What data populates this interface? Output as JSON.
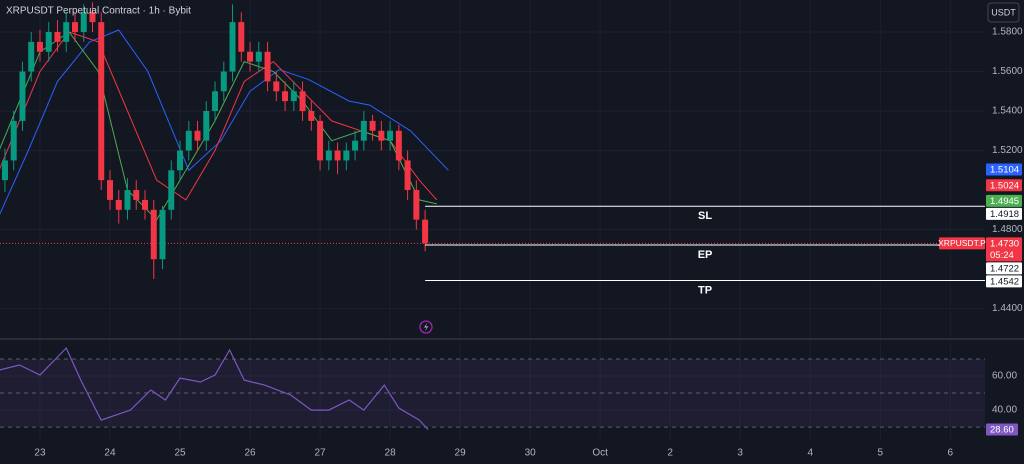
{
  "toolbar": {
    "currency": "USDT"
  },
  "chart_data": [
    {
      "type": "candlestick",
      "title": "XRPUSDT Perpetual Contract · 1h · Bybit",
      "x": [
        -12,
        -9,
        -6,
        -3,
        0,
        3,
        6,
        9,
        12,
        15,
        18,
        21,
        24,
        27,
        30,
        33,
        36,
        39,
        42,
        45,
        48,
        51,
        54,
        57,
        60,
        63,
        66,
        69,
        72,
        75,
        78,
        81,
        84,
        87,
        90,
        93,
        96,
        99,
        102,
        105,
        108,
        111,
        114,
        117,
        120,
        123,
        126,
        129,
        132
      ],
      "open": [
        1.505,
        1.515,
        1.535,
        1.56,
        1.575,
        1.57,
        1.58,
        1.575,
        1.585,
        1.58,
        1.59,
        1.585,
        1.505,
        1.495,
        1.49,
        1.5,
        1.495,
        1.49,
        1.465,
        1.49,
        1.51,
        1.52,
        1.53,
        1.525,
        1.54,
        1.55,
        1.56,
        1.585,
        1.57,
        1.565,
        1.57,
        1.555,
        1.55,
        1.545,
        1.55,
        1.54,
        1.535,
        1.515,
        1.52,
        1.515,
        1.52,
        1.525,
        1.535,
        1.53,
        1.525,
        1.53,
        1.515,
        1.5,
        1.485
      ],
      "high": [
        1.521,
        1.54,
        1.565,
        1.58,
        1.581,
        1.585,
        1.586,
        1.59,
        1.59,
        1.594,
        1.595,
        1.59,
        1.51,
        1.5,
        1.506,
        1.505,
        1.5,
        1.495,
        1.492,
        1.515,
        1.525,
        1.535,
        1.535,
        1.545,
        1.555,
        1.565,
        1.594,
        1.59,
        1.575,
        1.575,
        1.575,
        1.56,
        1.555,
        1.555,
        1.555,
        1.545,
        1.538,
        1.525,
        1.524,
        1.524,
        1.53,
        1.54,
        1.538,
        1.535,
        1.535,
        1.533,
        1.52,
        1.505,
        1.49
      ],
      "low": [
        1.499,
        1.51,
        1.53,
        1.555,
        1.565,
        1.565,
        1.57,
        1.57,
        1.575,
        1.575,
        1.58,
        1.5,
        1.49,
        1.483,
        1.485,
        1.49,
        1.485,
        1.455,
        1.46,
        1.485,
        1.505,
        1.515,
        1.52,
        1.52,
        1.535,
        1.545,
        1.555,
        1.565,
        1.56,
        1.56,
        1.55,
        1.545,
        1.54,
        1.54,
        1.535,
        1.53,
        1.51,
        1.51,
        1.508,
        1.51,
        1.515,
        1.52,
        1.525,
        1.52,
        1.52,
        1.51,
        1.495,
        1.48,
        1.469
      ],
      "close": [
        1.515,
        1.535,
        1.56,
        1.575,
        1.57,
        1.58,
        1.575,
        1.585,
        1.58,
        1.59,
        1.585,
        1.505,
        1.495,
        1.49,
        1.5,
        1.495,
        1.49,
        1.465,
        1.49,
        1.51,
        1.52,
        1.53,
        1.525,
        1.54,
        1.55,
        1.56,
        1.585,
        1.57,
        1.565,
        1.57,
        1.555,
        1.55,
        1.545,
        1.55,
        1.54,
        1.535,
        1.515,
        1.52,
        1.515,
        1.52,
        1.525,
        1.535,
        1.53,
        1.525,
        1.53,
        1.515,
        1.5,
        1.485,
        1.473
      ],
      "up_color": "#089981",
      "down_color": "#f23645",
      "series": [
        {
          "color": "#2962ff",
          "x": [
            -14,
            -4,
            6,
            17,
            27,
            37,
            51,
            62,
            72,
            82,
            92,
            106,
            113,
            127,
            140
          ],
          "values": [
            1.487,
            1.52,
            1.555,
            1.575,
            1.581,
            1.56,
            1.51,
            1.525,
            1.55,
            1.561,
            1.556,
            1.545,
            1.543,
            1.53,
            1.51
          ]
        },
        {
          "color": "#f23645",
          "x": [
            -14,
            0,
            10,
            20,
            30,
            40,
            50,
            60,
            70,
            80,
            90,
            100,
            110,
            120,
            130,
            136
          ],
          "values": [
            1.51,
            1.56,
            1.58,
            1.575,
            1.54,
            1.505,
            1.495,
            1.52,
            1.555,
            1.565,
            1.55,
            1.535,
            1.53,
            1.525,
            1.505,
            1.495
          ]
        },
        {
          "color": "#4caf50",
          "x": [
            -14,
            0,
            10,
            20,
            30,
            40,
            50,
            60,
            70,
            80,
            90,
            100,
            110,
            120,
            130,
            136
          ],
          "values": [
            1.52,
            1.57,
            1.58,
            1.56,
            1.5,
            1.485,
            1.51,
            1.535,
            1.565,
            1.56,
            1.545,
            1.525,
            1.53,
            1.525,
            1.495,
            1.493
          ]
        }
      ],
      "xlim": [
        -13.7,
        323.9
      ],
      "ylim": [
        1.4251,
        1.5962
      ],
      "yticks": [
        {
          "value": 1.58,
          "label": "1.5800"
        },
        {
          "value": 1.56,
          "label": "1.5600"
        },
        {
          "value": 1.54,
          "label": "1.5400"
        },
        {
          "value": 1.52,
          "label": "1.5200"
        },
        {
          "value": 1.48,
          "label": "1.4800"
        },
        {
          "value": 1.44,
          "label": "1.4400"
        }
      ],
      "xticks": [
        {
          "value": 0,
          "label": "23"
        },
        {
          "value": 24,
          "label": "24"
        },
        {
          "value": 48,
          "label": "25"
        },
        {
          "value": 72,
          "label": "26"
        },
        {
          "value": 96,
          "label": "27"
        },
        {
          "value": 120,
          "label": "28"
        },
        {
          "value": 144,
          "label": "29"
        },
        {
          "value": 168,
          "label": "30"
        },
        {
          "value": 192,
          "label": "Oct"
        },
        {
          "value": 216,
          "label": "2"
        },
        {
          "value": 240,
          "label": "3"
        },
        {
          "value": 264,
          "label": "4"
        },
        {
          "value": 288,
          "label": "5"
        },
        {
          "value": 312,
          "label": "6"
        }
      ],
      "grid": true,
      "price_tags": [
        {
          "value": 1.5104,
          "label": "1.5104",
          "color": "#2962ff"
        },
        {
          "value": 1.5024,
          "label": "1.5024",
          "color": "#f23645"
        },
        {
          "value": 1.4945,
          "label": "1.4945",
          "color": "#4caf50"
        }
      ],
      "last": {
        "name": "XRPUSDT.P",
        "value": 1.473,
        "label": "1.4730",
        "countdown": "05:24",
        "color": "#f23645"
      },
      "levels": [
        {
          "name": "SL",
          "value": 1.4918,
          "label": "1.4918",
          "x": 132
        },
        {
          "name": "EP",
          "value": 1.4722,
          "label": "1.4722",
          "x": 132
        },
        {
          "name": "TP",
          "value": 1.4542,
          "label": "1.4542",
          "x": 132
        }
      ]
    },
    {
      "type": "line",
      "x": [
        -14,
        -7,
        0,
        9,
        14,
        21,
        31,
        38,
        43,
        48,
        55,
        60,
        65,
        70,
        77,
        86,
        93,
        99,
        106,
        111,
        118,
        123,
        130,
        133
      ],
      "values": [
        63.5,
        66.5,
        60.6,
        76.5,
        57.6,
        34.1,
        40,
        51.8,
        45.9,
        58.8,
        56.5,
        60.6,
        75.3,
        57.6,
        54.7,
        48.8,
        40,
        40,
        45.9,
        40,
        54.7,
        41.2,
        34.1,
        28.6
      ],
      "color": "#7e57c2",
      "ylim": [
        22.4,
        81.2
      ],
      "yticks": [
        {
          "value": 60,
          "label": "60.00"
        },
        {
          "value": 40,
          "label": "40.00"
        }
      ],
      "levels": [
        70,
        50,
        30
      ],
      "last": {
        "value": 28.6,
        "label": "28.60"
      }
    }
  ]
}
